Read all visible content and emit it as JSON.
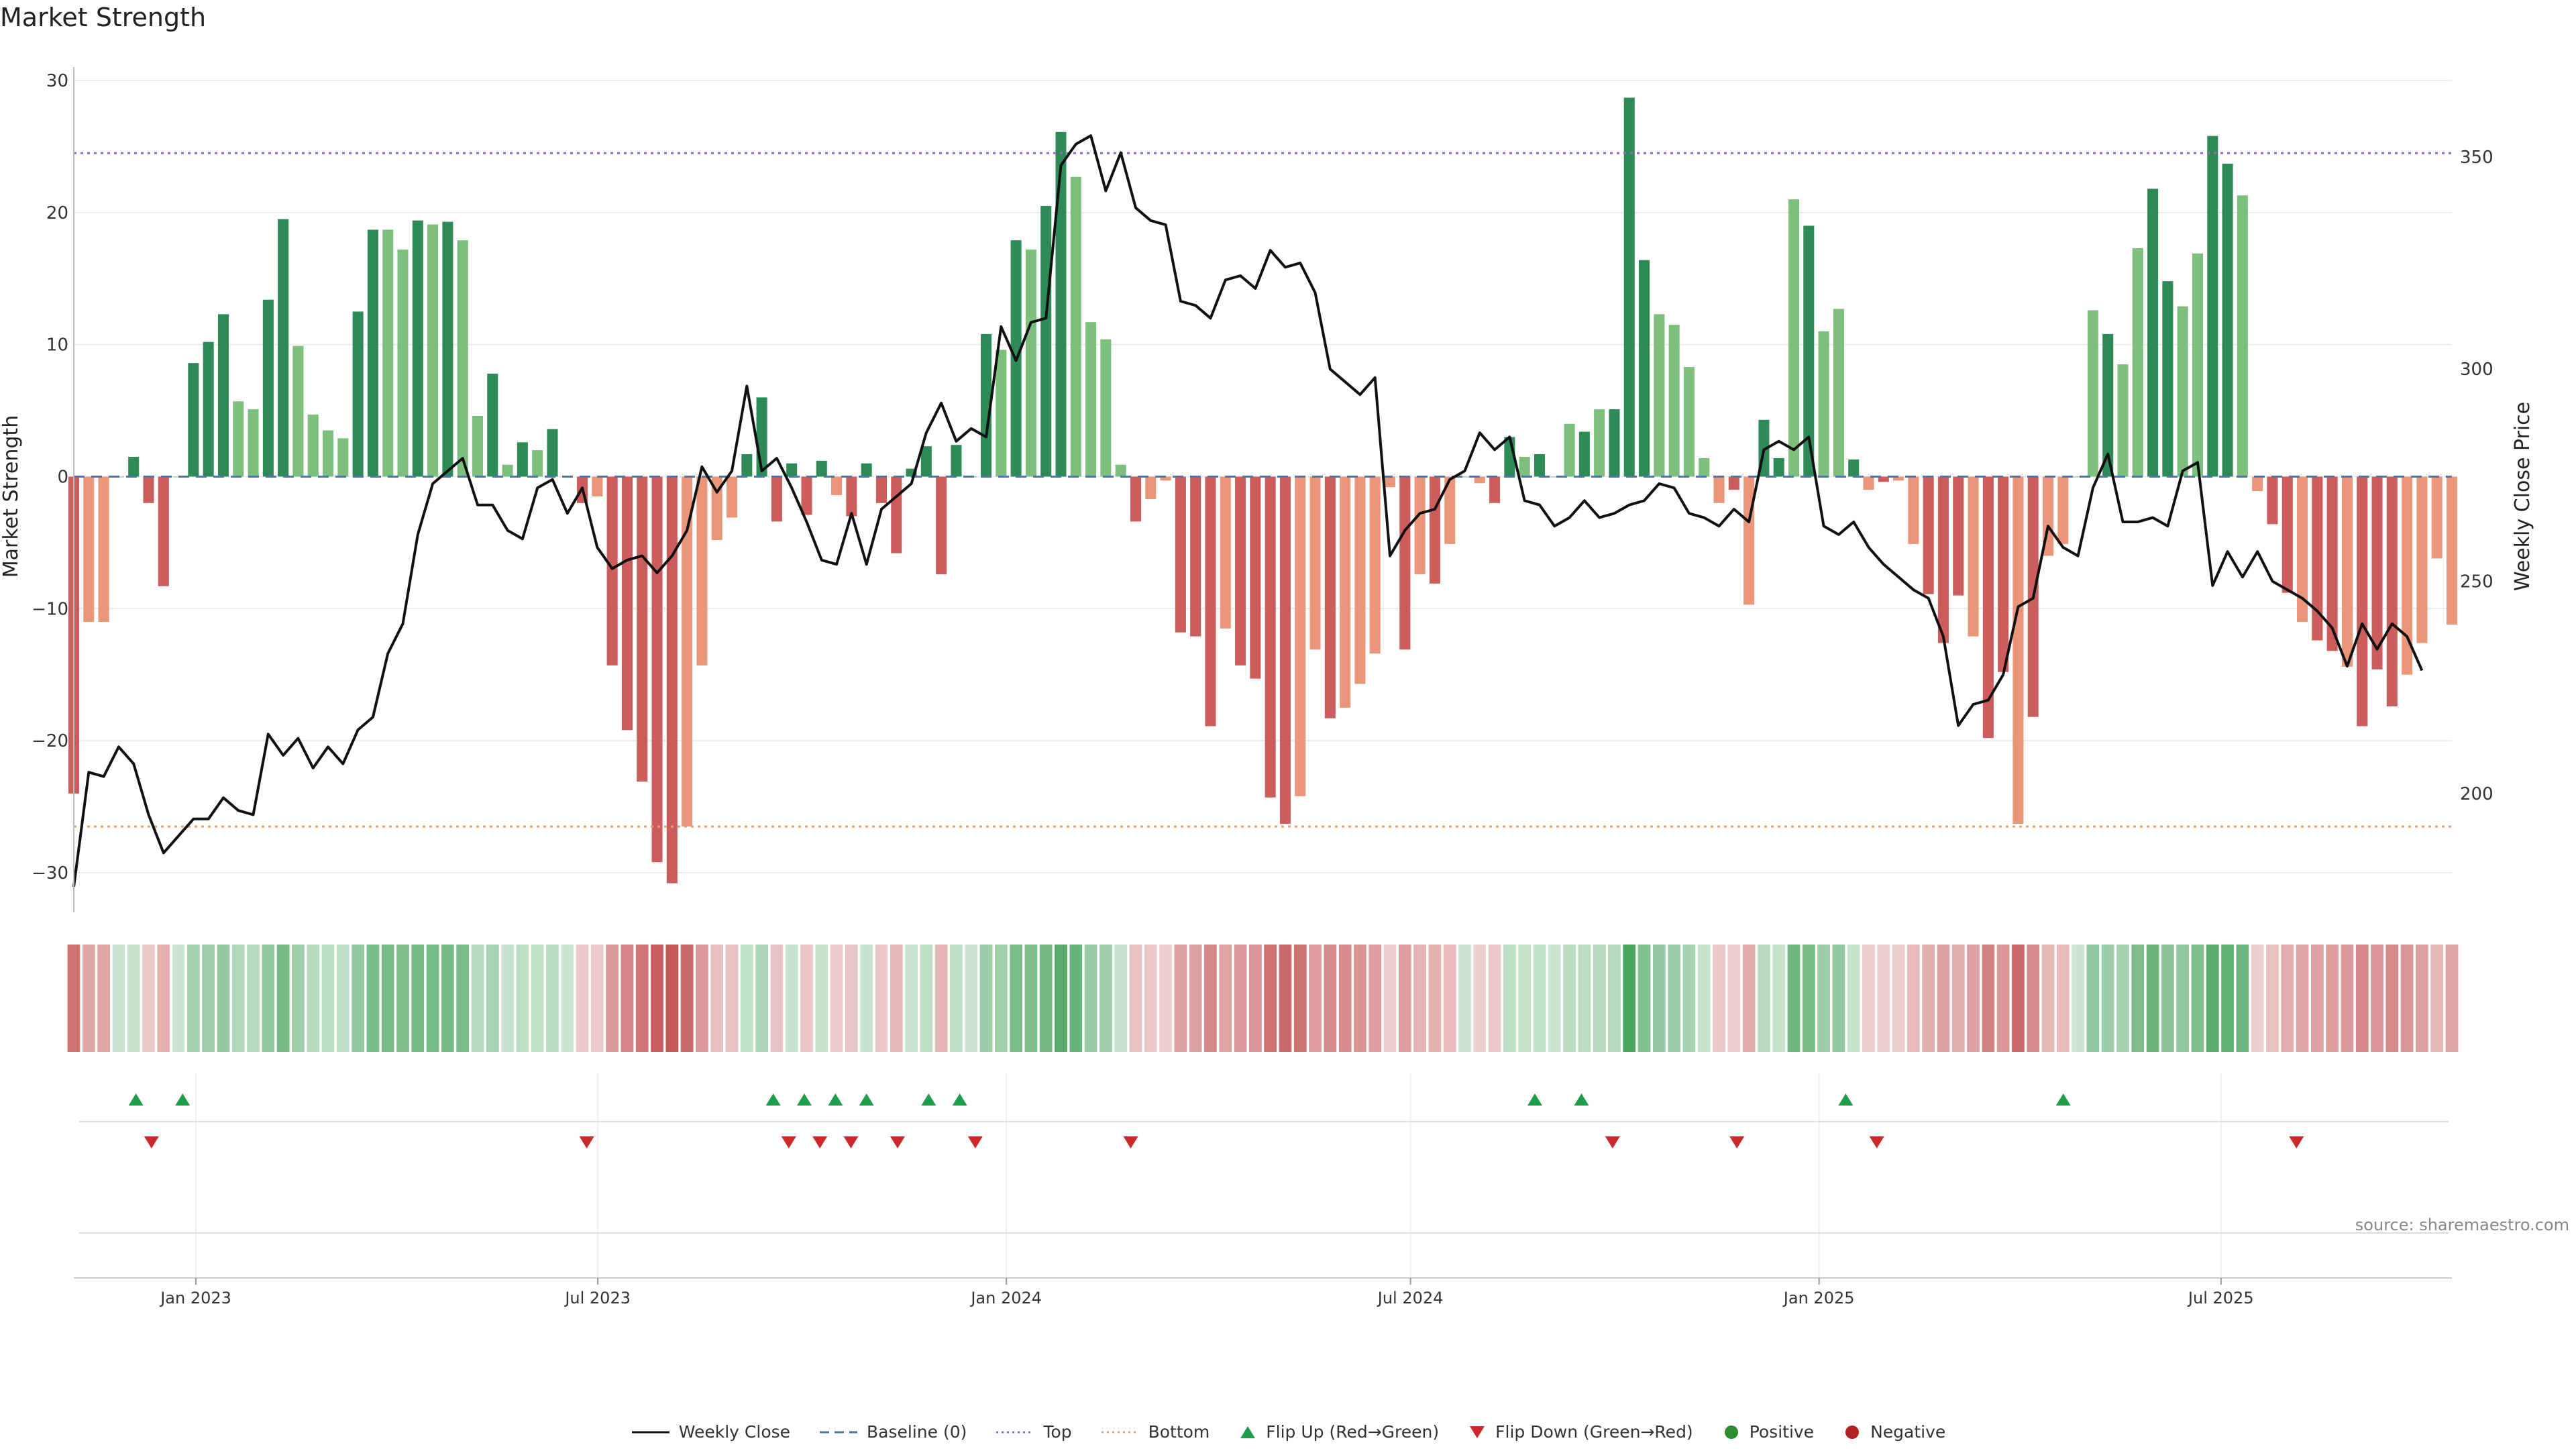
{
  "title": "Market Strength",
  "source": "source: sharemaestro.com",
  "legend": {
    "weekly_close": "Weekly Close",
    "baseline": "Baseline (0)",
    "top": "Top",
    "bottom": "Bottom",
    "flip_up": "Flip Up (Red→Green)",
    "flip_down": "Flip Down (Green→Red)",
    "positive": "Positive",
    "negative": "Negative"
  },
  "colors": {
    "pos_dark": "#2e8b57",
    "pos_light": "#7dbf7d",
    "neg_dark": "#cd5c5c",
    "neg_light": "#e9967a",
    "line": "#111111",
    "baseline": "#4a77b4",
    "top": "#9966cc",
    "bottom": "#e8a070",
    "flip_up": "#1e9e4a",
    "flip_down": "#cc2a2a"
  },
  "chart_data": {
    "type": "bar+line",
    "title": "Market Strength",
    "ylabel": "Market Strength",
    "y2label": "Weekly Close Price",
    "ylim": [
      -33,
      30
    ],
    "y2lim": [
      172,
      368
    ],
    "yticks": [
      -30,
      -20,
      -10,
      0,
      10,
      20,
      30
    ],
    "y2ticks": [
      200,
      250,
      300,
      350
    ],
    "top_line": 24.5,
    "bottom_line": -26.5,
    "x_start": "2022-11-07",
    "x_end": "2025-10-13",
    "xticks": [
      {
        "date": "2023-01-01",
        "label": "Jan 2023"
      },
      {
        "date": "2023-07-01",
        "label": "Jul 2023"
      },
      {
        "date": "2024-01-01",
        "label": "Jan 2024"
      },
      {
        "date": "2024-07-01",
        "label": "Jul 2024"
      },
      {
        "date": "2025-01-01",
        "label": "Jan 2025"
      },
      {
        "date": "2025-07-01",
        "label": "Jul 2025"
      }
    ],
    "strength": [
      -24,
      -11,
      -11,
      0,
      1.5,
      -2,
      -8.3,
      0,
      8.6,
      10.2,
      12.3,
      5.7,
      5.1,
      13.4,
      19.5,
      9.9,
      4.7,
      3.5,
      2.9,
      12.5,
      18.7,
      18.7,
      17.2,
      19.4,
      19.1,
      19.3,
      17.9,
      4.6,
      7.8,
      0.9,
      2.6,
      2,
      3.6,
      0,
      -2,
      -1.5,
      -14.3,
      -19.2,
      -23.1,
      -29.2,
      -30.8,
      -26.5,
      -14.3,
      -4.8,
      -3.1,
      1.7,
      6,
      -3.4,
      1,
      -2.9,
      1.2,
      -1.4,
      -3,
      1,
      -2,
      -5.8,
      0.6,
      2.3,
      -7.4,
      2.4,
      0,
      10.8,
      9.6,
      17.9,
      17.2,
      20.5,
      26.1,
      22.7,
      11.7,
      10.4,
      0.9,
      -3.4,
      -1.7,
      -0.3,
      -11.8,
      -12.1,
      -18.9,
      -11.5,
      -14.3,
      -15.3,
      -24.3,
      -26.3,
      -24.2,
      -13.1,
      -18.3,
      -17.5,
      -15.7,
      -13.4,
      -0.8,
      -13.1,
      -7.4,
      -8.1,
      -5.1,
      0,
      -0.5,
      -2,
      3,
      1.5,
      1.7,
      0,
      4,
      3.4,
      5.1,
      5.1,
      28.7,
      16.4,
      12.3,
      11.5,
      8.3,
      1.4,
      -2,
      -1,
      -9.7,
      4.3,
      1.4,
      21,
      19,
      11,
      12.7,
      1.3,
      -1,
      -0.4,
      -0.3,
      -5.1,
      -8.9,
      -12.6,
      -9,
      -12.1,
      -19.8,
      -14.8,
      -26.3,
      -18.2,
      -6,
      -5.1,
      0,
      12.6,
      10.8,
      8.5,
      17.3,
      21.8,
      14.8,
      12.9,
      16.9,
      25.8,
      23.7,
      21.3,
      -1.1,
      -3.6,
      -8.8,
      -11,
      -12.4,
      -13.2,
      -14.4,
      -18.9,
      -14.6,
      -17.4,
      -15,
      -12.6,
      -6.2,
      -11.2
    ],
    "shade": [
      "d",
      "l",
      "l",
      "l",
      "d",
      "d",
      "d",
      "l",
      "d",
      "d",
      "d",
      "l",
      "l",
      "d",
      "d",
      "l",
      "l",
      "l",
      "l",
      "d",
      "d",
      "l",
      "l",
      "d",
      "l",
      "d",
      "l",
      "l",
      "d",
      "l",
      "d",
      "l",
      "d",
      "l",
      "d",
      "l",
      "d",
      "d",
      "d",
      "d",
      "d",
      "l",
      "l",
      "l",
      "l",
      "d",
      "d",
      "d",
      "d",
      "d",
      "d",
      "l",
      "d",
      "d",
      "d",
      "d",
      "d",
      "d",
      "d",
      "d",
      "l",
      "d",
      "l",
      "d",
      "l",
      "d",
      "d",
      "l",
      "l",
      "l",
      "l",
      "d",
      "l",
      "l",
      "d",
      "d",
      "d",
      "l",
      "d",
      "d",
      "d",
      "d",
      "l",
      "l",
      "d",
      "l",
      "l",
      "l",
      "l",
      "d",
      "l",
      "d",
      "l",
      "l",
      "l",
      "d",
      "d",
      "l",
      "d",
      "l",
      "l",
      "d",
      "l",
      "d",
      "d",
      "d",
      "l",
      "l",
      "l",
      "l",
      "l",
      "d",
      "l",
      "d",
      "d",
      "l",
      "d",
      "l",
      "l",
      "d",
      "l",
      "d",
      "l",
      "l",
      "d",
      "d",
      "d",
      "l",
      "d",
      "d",
      "l",
      "d",
      "l",
      "l",
      "l",
      "l",
      "d",
      "l",
      "l",
      "d",
      "d",
      "l",
      "l",
      "d",
      "d",
      "l",
      "l",
      "d",
      "d",
      "l",
      "d",
      "d",
      "l",
      "d",
      "d",
      "d",
      "l",
      "l",
      "l",
      "l",
      "l",
      "l",
      "l"
    ],
    "close": [
      178,
      205,
      204,
      211,
      207,
      195,
      186,
      190,
      194,
      194,
      199,
      196,
      195,
      214,
      209,
      213,
      206,
      211,
      207,
      215,
      218,
      233,
      240,
      261,
      273,
      276,
      279,
      268,
      268,
      262,
      260,
      272,
      274,
      266,
      272,
      258,
      253,
      255,
      256,
      252,
      256,
      262,
      277,
      271,
      276,
      296,
      276,
      279,
      272,
      264,
      255,
      254,
      266,
      254,
      267,
      270,
      273,
      285,
      292,
      283,
      286,
      284,
      310,
      302,
      311,
      312,
      348,
      353,
      355,
      342,
      351,
      338,
      335,
      334,
      316,
      315,
      312,
      321,
      322,
      319,
      328,
      324,
      325,
      318,
      300,
      297,
      294,
      298,
      256,
      262,
      266,
      267,
      274,
      276,
      285,
      281,
      284,
      269,
      268,
      263,
      265,
      269,
      265,
      266,
      268,
      269,
      273,
      272,
      266,
      265,
      263,
      267,
      264,
      281,
      283,
      281,
      284,
      263,
      261,
      264,
      258,
      254,
      251,
      248,
      246,
      237,
      216,
      221,
      222,
      228,
      244,
      246,
      263,
      258,
      256,
      272,
      280,
      264,
      264,
      265,
      263,
      276,
      278,
      249,
      257,
      251,
      257,
      250,
      248,
      246,
      243,
      239,
      230,
      240,
      234,
      240,
      237,
      229
    ]
  },
  "flips": {
    "up": [
      "2022-12-05",
      "2022-12-26",
      "2023-09-18",
      "2023-10-02",
      "2023-10-16",
      "2023-10-30",
      "2023-11-27",
      "2023-12-11",
      "2024-08-26",
      "2024-09-16",
      "2025-01-13",
      "2025-04-21"
    ],
    "down": [
      "2022-12-12",
      "2023-06-26",
      "2023-09-25",
      "2023-10-09",
      "2023-10-23",
      "2023-11-13",
      "2023-12-18",
      "2024-02-26",
      "2024-09-30",
      "2024-11-25",
      "2025-01-27",
      "2025-08-04"
    ]
  }
}
